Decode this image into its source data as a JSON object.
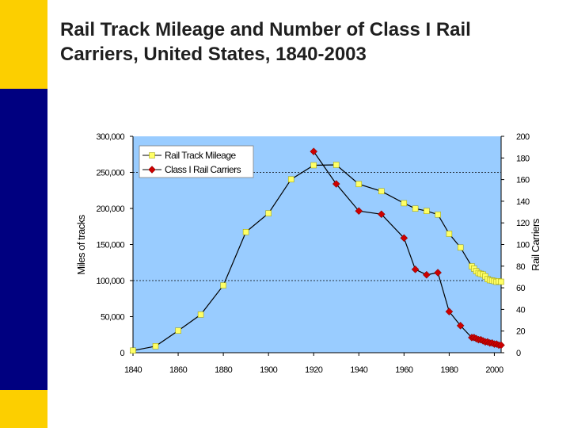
{
  "slide": {
    "title_line1": "Rail Track Mileage and Number of Class I Rail",
    "title_line2": "Carriers, United States, 1840-2003",
    "colors": {
      "accent_yellow": "#fccf00",
      "accent_blue": "#000080",
      "plot_background": "#99ccff"
    }
  },
  "chart_data": {
    "type": "line",
    "title": "",
    "xlabel": "",
    "ylabel": "Miles of tracks",
    "y2label": "Rail Carriers",
    "xlim": [
      1840,
      2003
    ],
    "ylim": [
      0,
      300000
    ],
    "y2lim": [
      0,
      200
    ],
    "x_ticks": [
      1840,
      1860,
      1880,
      1900,
      1920,
      1940,
      1960,
      1980,
      2000
    ],
    "y_ticks": [
      "0",
      "50,000",
      "100,000",
      "150,000",
      "200,000",
      "250,000",
      "300,000"
    ],
    "y_tick_values": [
      0,
      50000,
      100000,
      150000,
      200000,
      250000,
      300000
    ],
    "y2_ticks": [
      "0",
      "20",
      "40",
      "60",
      "80",
      "100",
      "120",
      "140",
      "160",
      "180",
      "200"
    ],
    "y2_tick_values": [
      0,
      20,
      40,
      60,
      80,
      100,
      120,
      140,
      160,
      180,
      200
    ],
    "grid": "horizontal dashed at 250,000 and 100,000",
    "legend_position": "top-left",
    "series": [
      {
        "name": "Rail Track Mileage",
        "axis": "left",
        "color": "#000000",
        "marker": "square",
        "marker_color": "#ffff66",
        "x": [
          1840,
          1850,
          1860,
          1870,
          1880,
          1890,
          1900,
          1910,
          1920,
          1930,
          1940,
          1950,
          1960,
          1965,
          1970,
          1975,
          1980,
          1985,
          1990,
          1991,
          1992,
          1993,
          1994,
          1995,
          1996,
          1997,
          1998,
          1999,
          2000,
          2001,
          2002,
          2003
        ],
        "values": [
          3000,
          9000,
          30600,
          52900,
          93300,
          167200,
          193300,
          240300,
          259900,
          260400,
          233700,
          223800,
          207300,
          199800,
          196500,
          191500,
          164800,
          145800,
          119800,
          116600,
          113100,
          110400,
          109300,
          108300,
          105800,
          102100,
          100600,
          100200,
          99300,
          98200,
          99000,
          98400
        ]
      },
      {
        "name": "Class I Rail Carriers",
        "axis": "right",
        "color": "#000000",
        "marker": "diamond",
        "marker_color": "#cc0000",
        "x": [
          1920,
          1930,
          1940,
          1950,
          1960,
          1965,
          1970,
          1975,
          1980,
          1985,
          1990,
          1991,
          1992,
          1993,
          1994,
          1995,
          1996,
          1997,
          1998,
          1999,
          2000,
          2001,
          2002,
          2003
        ],
        "values": [
          186,
          156,
          131,
          128,
          106,
          77,
          72,
          74,
          38,
          25,
          14,
          14,
          13,
          12,
          12,
          11,
          10,
          10,
          9,
          9,
          8,
          8,
          7,
          7
        ]
      }
    ]
  }
}
